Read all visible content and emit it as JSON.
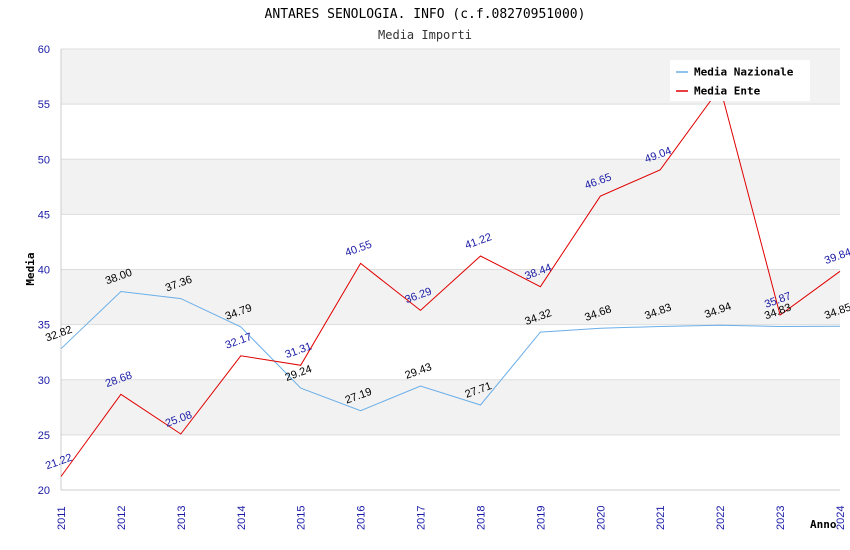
{
  "chart_data": {
    "type": "line",
    "title": "ANTARES SENOLOGIA. INFO (c.f.08270951000)",
    "subtitle": "Media Importi",
    "xlabel": "Anno",
    "ylabel": "Media",
    "ylim": [
      20,
      60
    ],
    "yticks": [
      "20",
      "25",
      "30",
      "35",
      "40",
      "45",
      "50",
      "55",
      "60"
    ],
    "x": [
      "2011",
      "2012",
      "2013",
      "2014",
      "2015",
      "2016",
      "2017",
      "2018",
      "2019",
      "2020",
      "2021",
      "2022",
      "2023",
      "2024"
    ],
    "grid": true,
    "legend_position": "top-right",
    "series": [
      {
        "name": "Media Nazionale",
        "color": "#6aaee8",
        "values": [
          32.82,
          38.0,
          37.36,
          34.79,
          29.24,
          27.19,
          29.43,
          27.71,
          34.32,
          34.68,
          34.83,
          34.94,
          34.83,
          34.85
        ],
        "labels": [
          "32.82",
          "38.00",
          "37.36",
          "34.79",
          "29.24",
          "27.19",
          "29.43",
          "27.71",
          "34.32",
          "34.68",
          "34.83",
          "34.94",
          "34.83",
          "34.85"
        ]
      },
      {
        "name": "Media Ente",
        "color": "#e00000",
        "values": [
          21.22,
          28.68,
          25.08,
          32.17,
          31.31,
          40.55,
          36.29,
          41.22,
          38.44,
          46.65,
          49.04,
          56.5,
          35.87,
          39.84
        ],
        "labels": [
          "21.22",
          "28.68",
          "25.08",
          "32.17",
          "31.31",
          "40.55",
          "36.29",
          "41.22",
          "38.44",
          "46.65",
          "49.04",
          "",
          "35.87",
          "39.84"
        ]
      }
    ]
  }
}
